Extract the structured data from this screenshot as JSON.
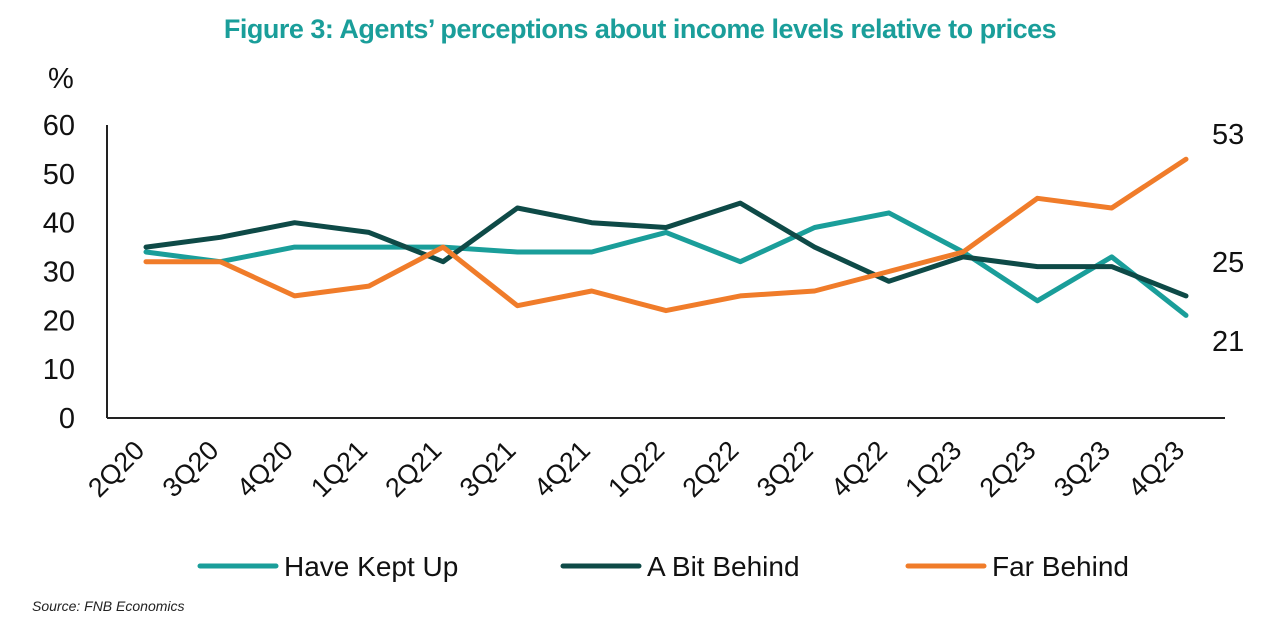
{
  "chart_data": {
    "type": "line",
    "title": "Figure 3: Agents’ perceptions about income levels relative to prices",
    "ylabel": "%",
    "xlabel": "",
    "ylim": [
      0,
      60
    ],
    "yticks": [
      "0",
      "10",
      "20",
      "30",
      "40",
      "50",
      "60"
    ],
    "categories": [
      "2Q20",
      "3Q20",
      "4Q20",
      "1Q21",
      "2Q21",
      "3Q21",
      "4Q21",
      "1Q22",
      "2Q22",
      "3Q22",
      "4Q22",
      "1Q23",
      "2Q23",
      "3Q23",
      "4Q23"
    ],
    "series": [
      {
        "name": "Have Kept Up",
        "color": "#1a9e9a",
        "values": [
          34,
          32,
          35,
          35,
          35,
          34,
          34,
          38,
          32,
          39,
          42,
          34,
          24,
          33,
          21
        ]
      },
      {
        "name": "A Bit Behind",
        "color": "#0e4a47",
        "values": [
          35,
          37,
          40,
          38,
          32,
          43,
          40,
          39,
          44,
          35,
          28,
          33,
          31,
          31,
          25
        ]
      },
      {
        "name": "Far Behind",
        "color": "#f07c2a",
        "values": [
          32,
          32,
          25,
          27,
          35,
          23,
          26,
          22,
          25,
          26,
          30,
          34,
          45,
          43,
          53
        ]
      }
    ],
    "end_labels": [
      "53",
      "25",
      "21"
    ],
    "legend_position": "bottom",
    "grid": false,
    "title_color": "#1a9e9a"
  },
  "source": "Source: FNB Economics"
}
